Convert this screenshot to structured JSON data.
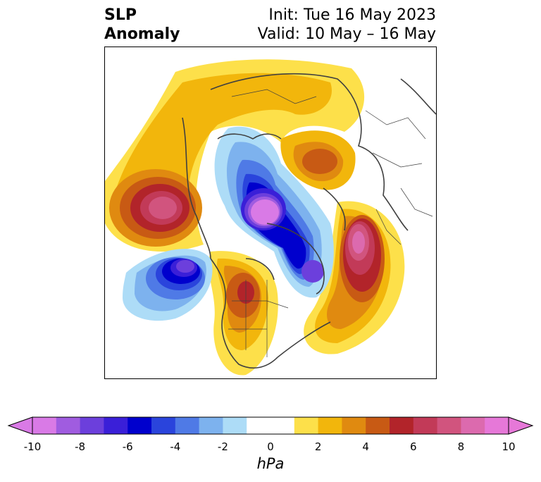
{
  "title": {
    "left_line1": "SLP",
    "left_line2": "Anomaly",
    "right_line1": "Init: Tue 16 May 2023",
    "right_line2": "Valid: 10 May – 16 May"
  },
  "map": {
    "projection": "north-polar-stereographic",
    "coastline_color": "#404040"
  },
  "colorbar": {
    "label": "hPa",
    "ticks": [
      "-10",
      "-8",
      "-6",
      "-4",
      "-2",
      "0",
      "2",
      "4",
      "6",
      "8",
      "10"
    ],
    "colors": [
      "#d97ae6",
      "#a05ce0",
      "#6c3fdc",
      "#3a1fd8",
      "#0000cd",
      "#2a44dc",
      "#4f7ae6",
      "#7db2ee",
      "#addcf7",
      "#ffffff",
      "#ffffff",
      "#fde04a",
      "#f2b60c",
      "#e08a10",
      "#c85a14",
      "#b2242a",
      "#c23a58",
      "#d1547e",
      "#dc6aae",
      "#e678d8"
    ],
    "extend": "both"
  }
}
